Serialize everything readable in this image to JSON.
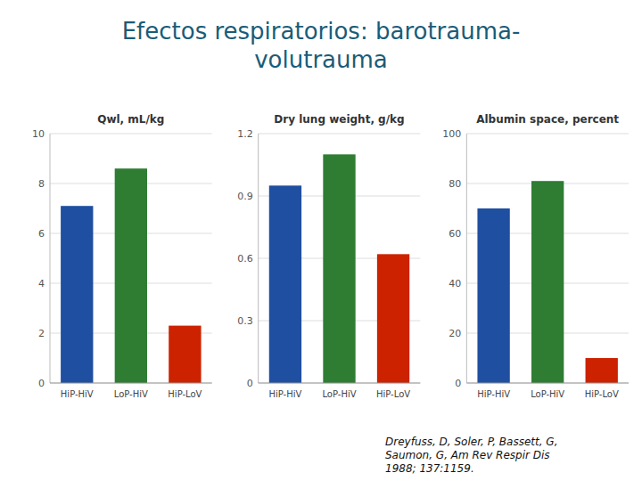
{
  "title": "Efectos respiratorios: barotrauma-\nvolutrauma",
  "annotations": [
    "Dreyfuss, D, Soler, P, Bassett, G,\nSaumon, G, Am Rev Respir Dis\n1988; 137:1159."
  ],
  "chart_data": [
    {
      "type": "bar",
      "title": "Qwl, mL/kg",
      "categories": [
        "HiP-HiV",
        "LoP-HiV",
        "HiP-LoV"
      ],
      "values": [
        7.1,
        8.6,
        2.3
      ],
      "colors": [
        "#1f4fa0",
        "#2e7d32",
        "#cc2200"
      ],
      "ylim": [
        0,
        10
      ],
      "yticks": [
        0,
        2,
        4,
        6,
        8,
        10
      ],
      "grid": true
    },
    {
      "type": "bar",
      "title": "Dry lung weight, g/kg",
      "categories": [
        "HiP-HiV",
        "LoP-HiV",
        "HiP-LoV"
      ],
      "values": [
        0.95,
        1.1,
        0.62
      ],
      "colors": [
        "#1f4fa0",
        "#2e7d32",
        "#cc2200"
      ],
      "ylim": [
        0,
        1.2
      ],
      "yticks": [
        0,
        0.3,
        0.6,
        0.9,
        1.2
      ],
      "grid": true
    },
    {
      "type": "bar",
      "title": "Albumin space, percent",
      "categories": [
        "HiP-HiV",
        "LoP-HiV",
        "HiP-LoV"
      ],
      "values": [
        70,
        81,
        10
      ],
      "colors": [
        "#1f4fa0",
        "#2e7d32",
        "#cc2200"
      ],
      "ylim": [
        0,
        100
      ],
      "yticks": [
        0,
        20,
        40,
        60,
        80,
        100
      ],
      "grid": true
    }
  ]
}
